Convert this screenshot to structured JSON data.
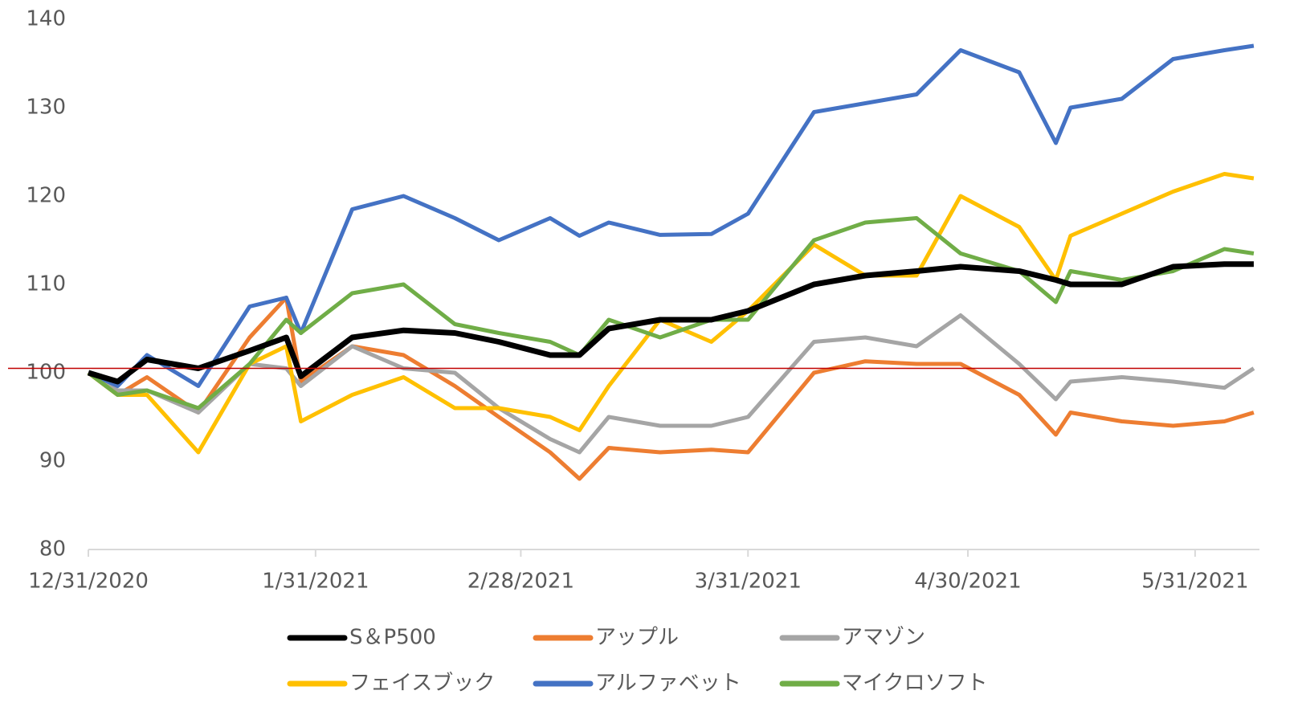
{
  "chart_data": {
    "type": "line",
    "x": [
      "12/31/2020",
      "1/4/2021",
      "1/8/2021",
      "1/15/2021",
      "1/22/2021",
      "1/27/2021",
      "1/29/2021",
      "2/5/2021",
      "2/12/2021",
      "2/19/2021",
      "2/25/2021",
      "3/4/2021",
      "3/8/2021",
      "3/12/2021",
      "3/19/2021",
      "3/26/2021",
      "3/31/2021",
      "4/9/2021",
      "4/16/2021",
      "4/23/2021",
      "4/29/2021",
      "5/7/2021",
      "5/12/2021",
      "5/14/2021",
      "5/21/2021",
      "5/28/2021",
      "6/4/2021",
      "6/8/2021"
    ],
    "series": [
      {
        "name": "S＆P500",
        "color": "#000000",
        "values": [
          100,
          99,
          101.5,
          100.5,
          102.5,
          104,
          99.6,
          104,
          104.8,
          104.5,
          103.5,
          102,
          102,
          105,
          106,
          106,
          107,
          110,
          111,
          111.5,
          112,
          111.5,
          110.5,
          110,
          110,
          112,
          112.3,
          112.3
        ]
      },
      {
        "name": "アップル",
        "color": "#ed7d31",
        "values": [
          100,
          97.5,
          99.5,
          95.5,
          104,
          108.5,
          99,
          103,
          102,
          98.5,
          95,
          91,
          88,
          91.5,
          91,
          91.3,
          91,
          100,
          101.3,
          101,
          101,
          97.5,
          93,
          95.5,
          94.5,
          94,
          94.5,
          95.5
        ]
      },
      {
        "name": "アマゾン",
        "color": "#a5a5a5",
        "values": [
          100,
          98,
          98,
          95.5,
          101,
          100.5,
          98.5,
          103,
          100.5,
          100,
          96,
          92.5,
          91,
          95,
          94,
          94,
          95,
          103.5,
          104,
          103,
          106.5,
          101,
          97,
          99,
          99.5,
          99,
          98.3,
          100.5
        ]
      },
      {
        "name": "フェイスブック",
        "color": "#ffc000",
        "values": [
          100,
          97.5,
          97.5,
          91,
          101,
          103,
          94.5,
          97.5,
          99.5,
          96,
          96,
          95,
          93.5,
          98.5,
          106,
          103.5,
          107,
          114.5,
          111,
          111,
          120,
          116.5,
          110.5,
          115.5,
          118,
          120.5,
          122.5,
          122
        ]
      },
      {
        "name": "アルファベット",
        "color": "#4472c4",
        "values": [
          100,
          98.5,
          102,
          98.5,
          107.5,
          108.5,
          104.5,
          118.5,
          120,
          117.5,
          115,
          117.5,
          115.5,
          117,
          115.6,
          115.7,
          118,
          129.5,
          130.5,
          131.5,
          136.5,
          134,
          126,
          130,
          131,
          135.5,
          136.5,
          137
        ]
      },
      {
        "name": "マイクロソフト",
        "color": "#70ad47",
        "values": [
          100,
          97.5,
          98,
          96,
          101,
          106,
          104.5,
          109,
          110,
          105.5,
          104.5,
          103.5,
          102,
          106,
          104,
          106,
          106,
          115,
          117,
          117.5,
          113.5,
          111.5,
          108,
          111.5,
          110.5,
          111.5,
          114,
          113.5
        ]
      }
    ],
    "xlim": [
      "12/31/2020",
      "6/9/2021"
    ],
    "xticks": [
      "12/31/2020",
      "1/31/2021",
      "2/28/2021",
      "3/31/2021",
      "4/30/2021",
      "5/31/2021"
    ],
    "ylim": [
      80,
      140
    ],
    "yticks": [
      80,
      90,
      100,
      110,
      120,
      130,
      140
    ],
    "reference_line": {
      "value": 100.5,
      "color": "#c00000"
    },
    "legend": "bottom"
  }
}
